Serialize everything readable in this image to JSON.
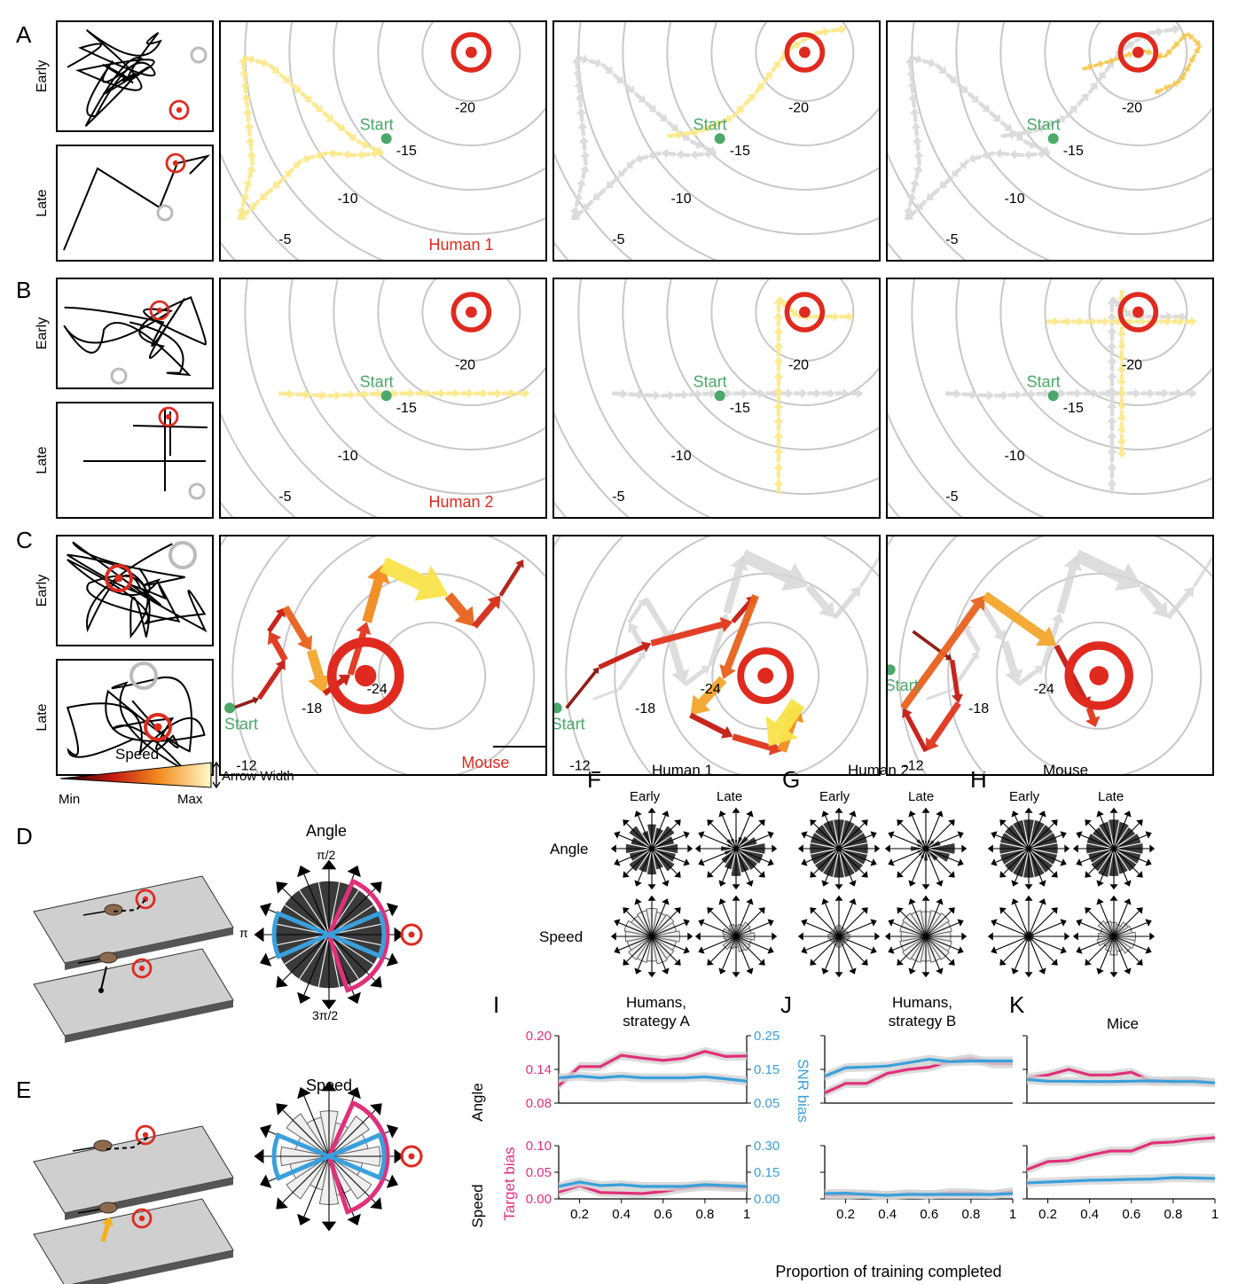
{
  "panel_letters": [
    "A",
    "B",
    "C",
    "D",
    "E",
    "F",
    "G",
    "H",
    "I",
    "J",
    "K"
  ],
  "row_labels": {
    "early": "Early",
    "late": "Late"
  },
  "start_label": "Start",
  "rows": [
    {
      "letter": "A",
      "subject": "Human 1",
      "contours": [
        "-5",
        "-10",
        "-15",
        "-20"
      ]
    },
    {
      "letter": "B",
      "subject": "Human 2",
      "contours": [
        "-5",
        "-10",
        "-15",
        "-20"
      ]
    },
    {
      "letter": "C",
      "subject": "Mouse",
      "contours": [
        "-12",
        "-18",
        "-24"
      ]
    }
  ],
  "speed_legend": {
    "title": "Speed",
    "min": "Min",
    "max": "Max",
    "width_label": "Arrow Width"
  },
  "panel_D": {
    "title": "Angle",
    "tick_top": "π/2",
    "tick_left": "π",
    "tick_bottom": "3π/2"
  },
  "panel_E": {
    "title": "Speed"
  },
  "rose_groups": [
    {
      "letter": "F",
      "title": "Human 1"
    },
    {
      "letter": "G",
      "title": "Human 2"
    },
    {
      "letter": "H",
      "title": "Mouse"
    }
  ],
  "rose_col_labels": [
    "Early",
    "Late"
  ],
  "rose_row_labels": [
    "Angle",
    "Speed"
  ],
  "colors": {
    "target_bias": "#e0307a",
    "snr_bias": "#3aa0dc",
    "target": "#e02a1f",
    "start": "#4aa868",
    "band": "#d3d3d3"
  },
  "chart_data": [
    {
      "type": "line",
      "panel": "I",
      "title": "Humans,\nstrategy A",
      "row": "Angle",
      "xlim": [
        0.1,
        1.0
      ],
      "y_left": [
        0.08,
        0.2
      ],
      "y_right": [
        0.05,
        0.25
      ],
      "y_left_ticks": [
        "0.08",
        "0.14",
        "0.20"
      ],
      "y_right_ticks": [
        "0.05",
        "0.15",
        "0.25"
      ],
      "x": [
        0.1,
        0.2,
        0.3,
        0.4,
        0.5,
        0.6,
        0.7,
        0.8,
        0.9,
        1.0
      ],
      "series": [
        {
          "name": "Target bias",
          "axis": "left",
          "values": [
            0.111,
            0.145,
            0.145,
            0.165,
            0.16,
            0.156,
            0.16,
            0.172,
            0.163,
            0.164
          ]
        },
        {
          "name": "SNR bias",
          "axis": "right",
          "values": [
            0.125,
            0.13,
            0.125,
            0.13,
            0.125,
            0.125,
            0.125,
            0.128,
            0.122,
            0.115
          ]
        }
      ]
    },
    {
      "type": "line",
      "panel": "I",
      "row": "Speed",
      "xlim": [
        0.1,
        1.0
      ],
      "y_left": [
        0.0,
        0.1
      ],
      "y_right": [
        0.0,
        0.3
      ],
      "y_left_ticks": [
        "0.00",
        "0.05",
        "0.10"
      ],
      "y_right_ticks": [
        "0.00",
        "0.15",
        "0.30"
      ],
      "x": [
        0.1,
        0.2,
        0.3,
        0.4,
        0.5,
        0.6,
        0.7,
        0.8,
        0.9,
        1.0
      ],
      "series": [
        {
          "name": "Target bias",
          "axis": "left",
          "values": [
            0.013,
            0.025,
            0.012,
            0.011,
            0.01,
            0.014,
            0.02,
            0.024,
            0.022,
            0.021
          ]
        },
        {
          "name": "SNR bias",
          "axis": "right",
          "values": [
            0.07,
            0.095,
            0.075,
            0.08,
            0.07,
            0.07,
            0.07,
            0.08,
            0.075,
            0.07
          ]
        }
      ]
    },
    {
      "type": "line",
      "panel": "J",
      "title": "Humans,\nstrategy B",
      "row": "Angle",
      "xlim": [
        0.1,
        1.0
      ],
      "x": [
        0.1,
        0.2,
        0.3,
        0.4,
        0.5,
        0.6,
        0.7,
        0.8,
        0.9,
        1.0
      ],
      "series": [
        {
          "name": "Target bias",
          "axis": "left",
          "values": [
            0.098,
            0.115,
            0.115,
            0.133,
            0.14,
            0.144,
            0.154,
            0.16,
            0.15,
            0.15
          ]
        },
        {
          "name": "SNR bias",
          "axis": "right",
          "values": [
            0.13,
            0.155,
            0.157,
            0.16,
            0.17,
            0.18,
            0.173,
            0.175,
            0.175,
            0.175
          ]
        }
      ]
    },
    {
      "type": "line",
      "panel": "J",
      "row": "Speed",
      "xlim": [
        0.1,
        1.0
      ],
      "x": [
        0.1,
        0.2,
        0.3,
        0.4,
        0.5,
        0.6,
        0.7,
        0.8,
        0.9,
        1.0
      ],
      "series": [
        {
          "name": "Target bias",
          "axis": "left",
          "values": [
            0.007,
            0.007,
            0.009,
            0.006,
            0.01,
            0.007,
            0.012,
            0.011,
            0.008,
            0.014
          ]
        },
        {
          "name": "SNR bias",
          "axis": "right",
          "values": [
            0.03,
            0.032,
            0.025,
            0.02,
            0.025,
            0.025,
            0.025,
            0.025,
            0.025,
            0.03
          ]
        }
      ]
    },
    {
      "type": "line",
      "panel": "K",
      "title": "Mice",
      "row": "Angle",
      "xlim": [
        0.1,
        1.0
      ],
      "x": [
        0.1,
        0.2,
        0.3,
        0.4,
        0.5,
        0.6,
        0.7,
        0.8,
        0.9,
        1.0
      ],
      "series": [
        {
          "name": "Target bias",
          "axis": "left",
          "values": [
            0.125,
            0.13,
            0.14,
            0.13,
            0.13,
            0.135,
            0.118,
            0.12,
            0.12,
            0.116
          ]
        },
        {
          "name": "SNR bias",
          "axis": "right",
          "values": [
            0.12,
            0.115,
            0.115,
            0.114,
            0.114,
            0.115,
            0.116,
            0.114,
            0.114,
            0.11
          ]
        }
      ]
    },
    {
      "type": "line",
      "panel": "K",
      "row": "Speed",
      "xlim": [
        0.1,
        1.0
      ],
      "x": [
        0.1,
        0.2,
        0.3,
        0.4,
        0.5,
        0.6,
        0.7,
        0.8,
        0.9,
        1.0
      ],
      "series": [
        {
          "name": "Target bias",
          "axis": "left",
          "values": [
            0.055,
            0.07,
            0.072,
            0.082,
            0.09,
            0.09,
            0.105,
            0.107,
            0.112,
            0.115
          ]
        },
        {
          "name": "SNR bias",
          "axis": "right",
          "values": [
            0.09,
            0.095,
            0.1,
            0.105,
            0.107,
            0.11,
            0.112,
            0.12,
            0.118,
            0.115
          ]
        }
      ]
    }
  ],
  "axis_labels": {
    "target_bias": "Target bias",
    "snr_bias": "SNR bias",
    "x": "Proportion of training completed",
    "x_ticks": [
      "0.2",
      "0.4",
      "0.6",
      "0.8",
      "1"
    ]
  }
}
